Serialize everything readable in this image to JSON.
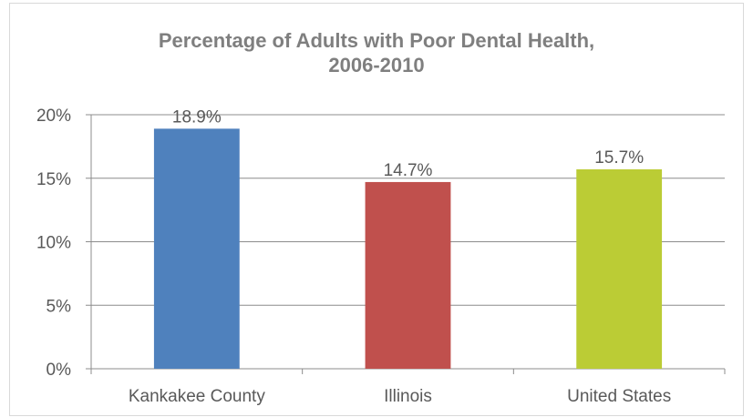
{
  "chart_data": {
    "type": "bar",
    "title": "Percentage of Adults with Poor Dental Health,\n2006-2010",
    "categories": [
      "Kankakee County",
      "Illinois",
      "United States"
    ],
    "values": [
      18.9,
      14.7,
      15.7
    ],
    "data_labels": [
      "18.9%",
      "14.7%",
      "15.7%"
    ],
    "bar_colors": [
      "#4f81bd",
      "#c0504d",
      "#bbcc35"
    ],
    "ylim": [
      0,
      20
    ],
    "y_ticks": [
      0,
      5,
      10,
      15,
      20
    ],
    "y_tick_labels": [
      "0%",
      "5%",
      "10%",
      "15%",
      "20%"
    ],
    "grid": true,
    "legend": "none",
    "xlabel": "",
    "ylabel": ""
  }
}
